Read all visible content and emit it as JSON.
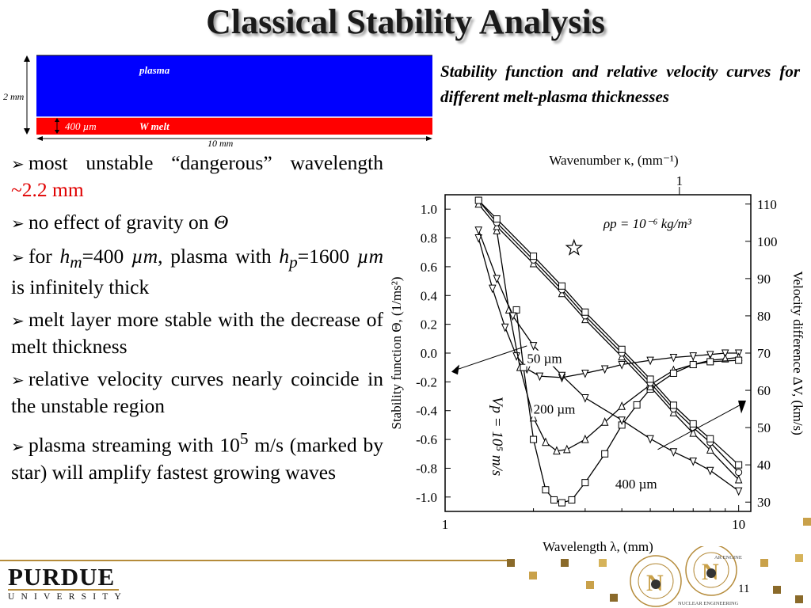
{
  "slide": {
    "title": "Classical Stability Analysis",
    "page_number": "11"
  },
  "layers": {
    "plasma_label": "plasma",
    "melt_label": "W melt",
    "height_label": "2 mm",
    "melt_thickness_label": "400 µm",
    "width_label": "10 mm",
    "colors": {
      "plasma": "#0000ff",
      "melt": "#ff0000"
    }
  },
  "caption": "Stability function and relative velocity curves for different melt-plasma thicknesses",
  "bullets": [
    {
      "text": "most unstable “dangerous” wavelength ",
      "highlight": "~2.2 mm"
    },
    {
      "text": "no effect of gravity on ",
      "symbol": "Θ"
    },
    {
      "text_a": "for ",
      "hm": "h",
      "hm_sub": "m",
      "text_b": "=400 ",
      "unit_a": "µm",
      "text_c": ", plasma with ",
      "hp": "h",
      "hp_sub": "p",
      "text_d": "=1600 ",
      "unit_b": "µm",
      "text_e": " is infinitely thick"
    },
    {
      "text": "melt layer more stable with the decrease of melt thickness"
    },
    {
      "text": "relative velocity curves nearly coincide in the unstable region"
    },
    {
      "text_a": "plasma streaming with 10",
      "sup": "5",
      "text_b": " m/s (marked by star) will amplify fastest growing waves"
    }
  ],
  "chart_data": {
    "type": "line",
    "top_axis_title": "Wavenumber κ, (mm⁻¹)",
    "top_tick_labels": [
      "1"
    ],
    "xlabel": "Wavelength λ, (mm)",
    "ylabel_left": "Stability function Θ, (1/ms²)",
    "ylabel_right": "Velocity difference ΔV, (km/s)",
    "xscale": "log",
    "xlim": [
      1,
      11
    ],
    "ylim_left": [
      -1.1,
      1.1
    ],
    "ylim_right": [
      27.5,
      112.5
    ],
    "x_tick_labels": [
      "1",
      "10"
    ],
    "y_left_ticks": [
      1.0,
      0.8,
      0.6,
      0.4,
      0.2,
      0.0,
      -0.2,
      -0.4,
      -0.6,
      -0.8,
      -1.0
    ],
    "y_left_tick_labels": [
      "1.0",
      "0.8",
      "0.6",
      "0.4",
      "0.2",
      "0.0",
      "-0.2",
      "-0.4",
      "-0.6",
      "-0.8",
      "-1.0"
    ],
    "y_right_ticks": [
      30,
      40,
      50,
      60,
      70,
      80,
      90,
      100,
      110
    ],
    "y_right_tick_labels": [
      "30",
      "40",
      "50",
      "60",
      "70",
      "80",
      "90",
      "100",
      "110"
    ],
    "density_annotation": "ρp = 10⁻⁶ kg/m³",
    "vp_annotation": "Vp = 10⁵ m/s",
    "star_marker": {
      "x": 2.75,
      "y": 0.73
    },
    "stability_series": [
      {
        "name": "50 µm",
        "marker": "triangle-down",
        "x": [
          1.3,
          1.45,
          1.6,
          1.75,
          1.9,
          2.1,
          2.5,
          3,
          3.5,
          4,
          5,
          6,
          7,
          8,
          9,
          10
        ],
        "y": [
          0.8,
          0.45,
          0.18,
          -0.02,
          -0.11,
          -0.16,
          -0.17,
          -0.14,
          -0.11,
          -0.08,
          -0.05,
          -0.03,
          -0.02,
          -0.01,
          0.0,
          0.0
        ]
      },
      {
        "name": "200 µm",
        "marker": "triangle-up",
        "x": [
          1.5,
          1.65,
          1.8,
          2.0,
          2.2,
          2.4,
          2.6,
          3.0,
          3.5,
          4,
          5,
          6,
          7,
          8,
          9,
          10
        ],
        "y": [
          0.85,
          0.3,
          -0.1,
          -0.45,
          -0.62,
          -0.68,
          -0.67,
          -0.6,
          -0.48,
          -0.37,
          -0.22,
          -0.12,
          -0.08,
          -0.05,
          -0.04,
          -0.03
        ]
      },
      {
        "name": "400 µm",
        "marker": "square",
        "x": [
          1.75,
          1.85,
          2.0,
          2.2,
          2.35,
          2.5,
          2.7,
          3.0,
          3.5,
          4,
          4.5,
          5,
          6,
          7,
          8,
          10
        ],
        "y": [
          0.3,
          -0.1,
          -0.6,
          -0.95,
          -1.02,
          -1.04,
          -1.02,
          -0.9,
          -0.7,
          -0.5,
          -0.36,
          -0.25,
          -0.14,
          -0.08,
          -0.06,
          -0.05
        ]
      }
    ],
    "velocity_series": [
      {
        "name": "50 µm",
        "marker": "triangle-down",
        "x": [
          1.3,
          1.5,
          1.7,
          2.0,
          2.5,
          3,
          4,
          5,
          6,
          7,
          8,
          10
        ],
        "y": [
          103,
          90,
          80,
          72,
          64,
          58,
          52,
          47,
          43.5,
          41,
          38.5,
          33
        ]
      },
      {
        "name": "200 µm",
        "marker": "triangle-up",
        "x": [
          1.3,
          1.5,
          2.0,
          2.5,
          3,
          4,
          5,
          6,
          7,
          8,
          10
        ],
        "y": [
          110,
          104,
          94,
          86,
          79,
          69,
          61,
          54,
          48.5,
          44,
          36
        ]
      },
      {
        "name": "400 µm",
        "marker": "circle",
        "x": [
          1.3,
          1.5,
          2.0,
          2.5,
          3,
          4,
          5,
          6,
          7,
          8,
          10
        ],
        "y": [
          111,
          105,
          95,
          87,
          80,
          70,
          62,
          55,
          50,
          46,
          38
        ]
      },
      {
        "name": "",
        "marker": "square",
        "x": [
          1.3,
          1.5,
          2.0,
          2.5,
          3,
          4,
          5,
          6,
          7,
          8,
          10
        ],
        "y": [
          111,
          106,
          96,
          88,
          81,
          71,
          63,
          56,
          51,
          47,
          40
        ]
      }
    ]
  },
  "logo": {
    "name": "PURDUE",
    "sub": "UNIVERSITY",
    "seal_text": "NUCLEAR ENGINEERING",
    "seal_letter": "N",
    "seal_text_fragment": "AR ENGINE"
  }
}
